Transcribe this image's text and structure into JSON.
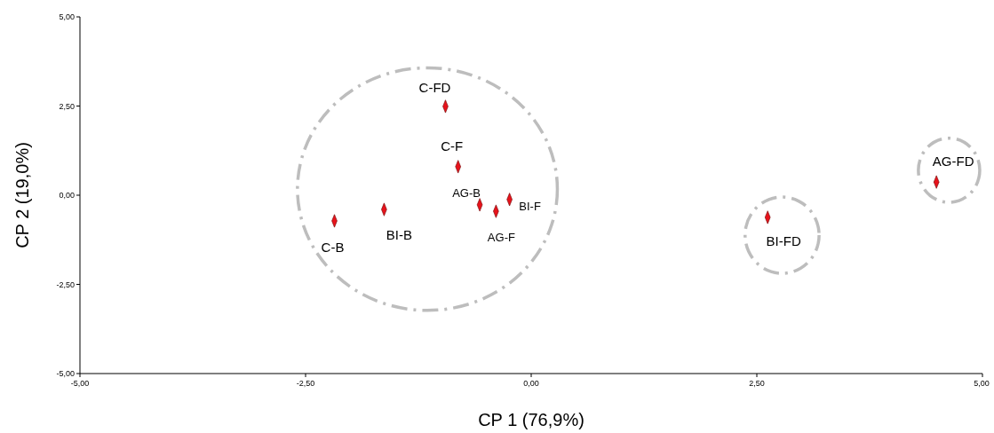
{
  "chart_data": {
    "type": "scatter",
    "xlabel": "CP 1 (76,9%)",
    "ylabel": "CP 2 (19,0%)",
    "xlim": [
      -5,
      5
    ],
    "ylim": [
      -5,
      5
    ],
    "xticks": [
      {
        "value": -5,
        "label": "-5,00"
      },
      {
        "value": -2.5,
        "label": "-2,50"
      },
      {
        "value": 0,
        "label": "0,00"
      },
      {
        "value": 2.5,
        "label": "2,50"
      },
      {
        "value": 5,
        "label": "5,00"
      }
    ],
    "yticks": [
      {
        "value": -5,
        "label": "-5,00"
      },
      {
        "value": -2.5,
        "label": "-2,50"
      },
      {
        "value": 0,
        "label": "0,00"
      },
      {
        "value": 2.5,
        "label": "2,50"
      },
      {
        "value": 5,
        "label": "5,00"
      }
    ],
    "marker": "diamond",
    "grid": false,
    "series": [
      {
        "color": "#e8121b",
        "x": [
          -0.95,
          -0.81,
          -0.57,
          -0.39,
          -0.24,
          -1.63,
          -2.18,
          2.62,
          4.49
        ],
        "values": [
          2.49,
          0.8,
          -0.27,
          -0.45,
          -0.12,
          -0.4,
          -0.72,
          -0.62,
          0.37
        ]
      }
    ],
    "annotations": [
      {
        "text": "C-FD",
        "x": -0.95,
        "y": 2.49
      },
      {
        "text": "C-F",
        "x": -0.81,
        "y": 0.8
      },
      {
        "text": "AG-B",
        "x": -0.57,
        "y": -0.27
      },
      {
        "text": "AG-F",
        "x": -0.39,
        "y": -0.45
      },
      {
        "text": "BI-F",
        "x": -0.24,
        "y": -0.12
      },
      {
        "text": "BI-B",
        "x": -1.63,
        "y": -0.4
      },
      {
        "text": "C-B",
        "x": -2.18,
        "y": -0.72
      },
      {
        "text": "BI-FD",
        "x": 2.62,
        "y": -0.62
      },
      {
        "text": "AG-FD",
        "x": 4.49,
        "y": 0.37
      }
    ]
  }
}
